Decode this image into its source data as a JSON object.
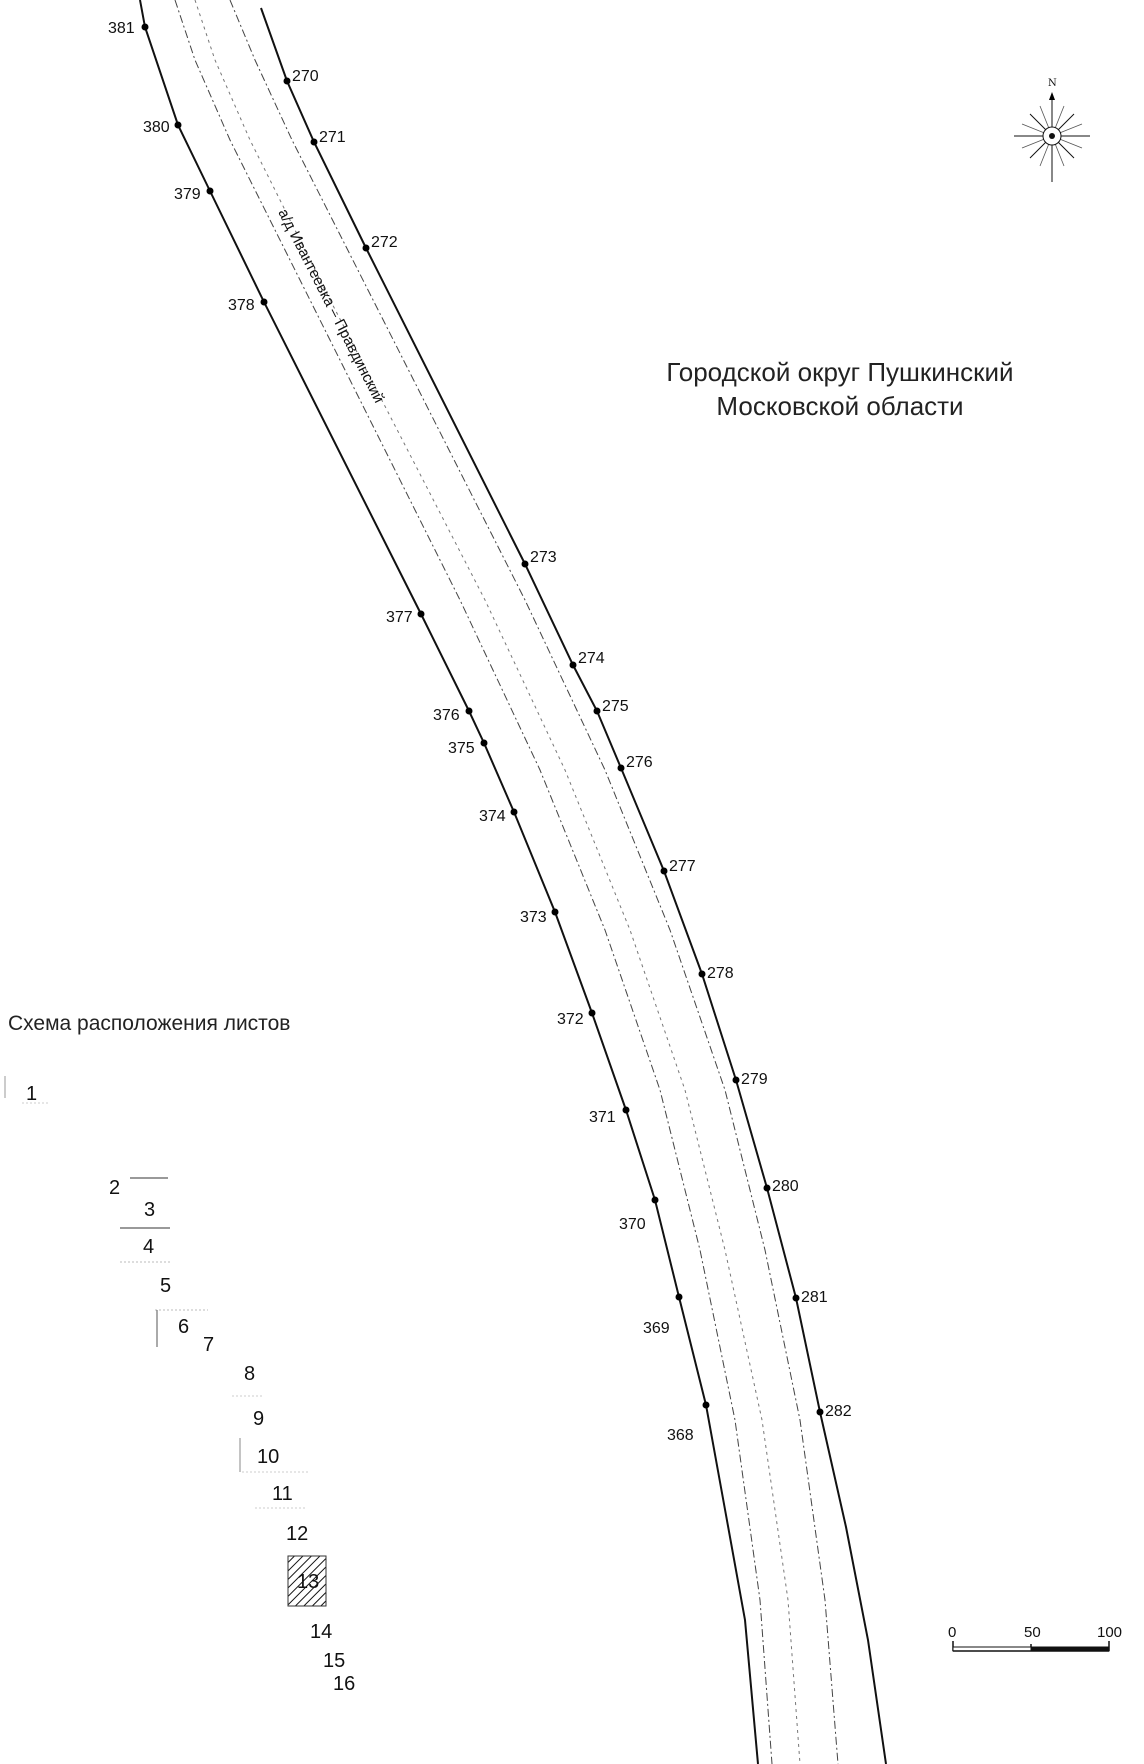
{
  "title_lines": [
    "Городской округ Пушкинский",
    "Московской области"
  ],
  "road_label": "а/д Ивантеевка – Правдинский",
  "north_label": "N",
  "schema": {
    "title": "Схема расположения листов",
    "sheets": [
      "1",
      "2",
      "3",
      "4",
      "5",
      "6",
      "7",
      "8",
      "9",
      "10",
      "11",
      "12",
      "13",
      "14",
      "15",
      "16"
    ],
    "highlighted_sheet": "13"
  },
  "scale": {
    "labels": [
      "0",
      "50",
      "100"
    ]
  },
  "right_boundary_points": [
    "270",
    "271",
    "272",
    "273",
    "274",
    "275",
    "276",
    "277",
    "278",
    "279",
    "280",
    "281",
    "282"
  ],
  "left_boundary_points": [
    "381",
    "380",
    "379",
    "378",
    "377",
    "376",
    "375",
    "374",
    "373",
    "372",
    "371",
    "370",
    "369",
    "368"
  ]
}
